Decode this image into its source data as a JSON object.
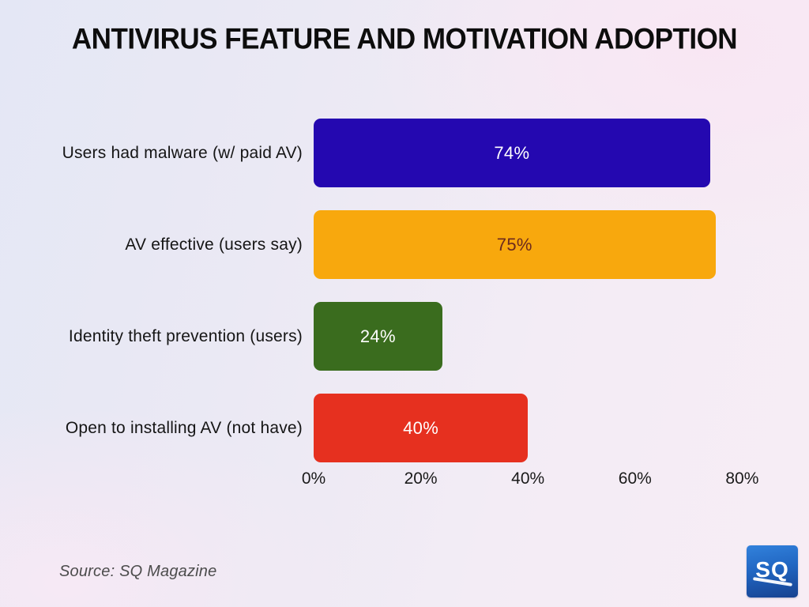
{
  "title": "ANTIVIRUS FEATURE AND MOTIVATION ADOPTION",
  "source": {
    "text": "Source: SQ Magazine"
  },
  "logo": {
    "text": "SQ",
    "background_color": "#2166c2",
    "text_color": "#ffffff"
  },
  "chart_data": {
    "type": "bar",
    "orientation": "horizontal",
    "title": "ANTIVIRUS FEATURE AND MOTIVATION ADOPTION",
    "categories": [
      "Users had malware (w/ paid AV)",
      "AV effective (users say)",
      "Identity theft prevention (users)",
      "Open to installing AV (not have)"
    ],
    "values": [
      74,
      75,
      24,
      40
    ],
    "value_labels": [
      "74%",
      "75%",
      "24%",
      "40%"
    ],
    "bar_colors": [
      "#2408b0",
      "#f8a80d",
      "#3a6c1e",
      "#e6301f"
    ],
    "value_text_colors": [
      "#ffffff",
      "#6b2a1e",
      "#ffffff",
      "#ffffff"
    ],
    "x_ticks": [
      "0%",
      "20%",
      "40%",
      "60%",
      "80%"
    ],
    "x_tick_values": [
      0,
      20,
      40,
      60,
      80
    ],
    "xlim": [
      0,
      100
    ],
    "xlabel": "",
    "ylabel": "",
    "grid": false,
    "legend": false
  }
}
